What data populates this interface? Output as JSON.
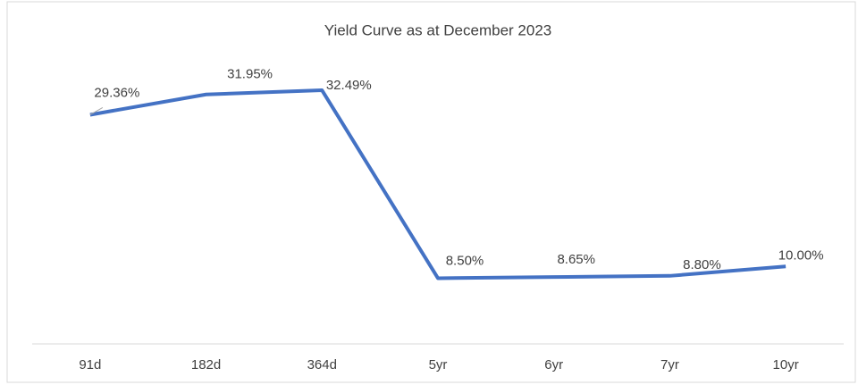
{
  "chart_data": {
    "type": "line",
    "title": "Yield Curve as at December 2023",
    "categories": [
      "91d",
      "182d",
      "364d",
      "5yr",
      "6yr",
      "7yr",
      "10yr"
    ],
    "values": [
      29.36,
      31.95,
      32.49,
      8.5,
      8.65,
      8.8,
      10.0
    ],
    "value_labels": [
      "29.36%",
      "31.95%",
      "32.49%",
      "8.50%",
      "8.65%",
      "8.80%",
      "10.00%"
    ],
    "color": "#4472c4",
    "ylim": [
      0,
      35
    ]
  }
}
